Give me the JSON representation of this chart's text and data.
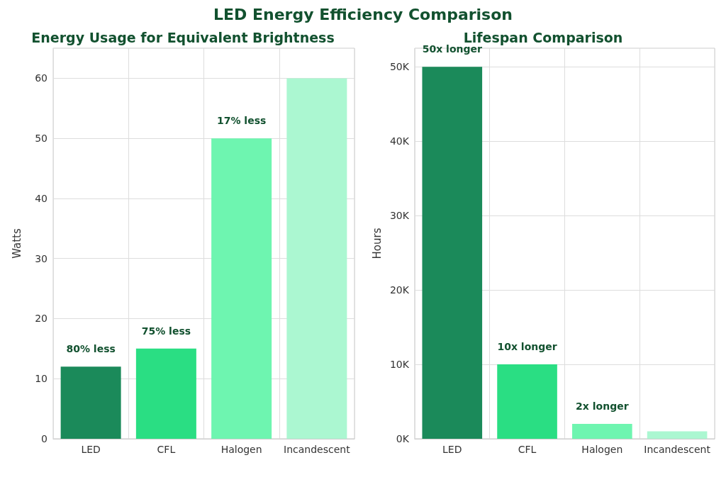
{
  "chart_data": [
    {
      "type": "bar",
      "title": "Energy Usage for Equivalent Brightness",
      "ylabel": "Watts",
      "categories": [
        "LED",
        "CFL",
        "Halogen",
        "Incandescent"
      ],
      "values": [
        12,
        15,
        50,
        60
      ],
      "colors": [
        "#1b8a5a",
        "#2ade83",
        "#6ef5b0",
        "#abf7d1"
      ],
      "ylim": [
        0,
        65
      ],
      "yticks": [
        0,
        10,
        20,
        30,
        40,
        50,
        60
      ],
      "grid": true,
      "annotations": [
        "LED Energy Efficiency Comparison",
        {
          "text": "80% less",
          "x": "LED",
          "y": 12
        },
        {
          "text": "75% less",
          "x": "CFL",
          "y": 15
        },
        {
          "text": "17% less",
          "x": "Halogen",
          "y": 50
        }
      ]
    },
    {
      "type": "bar",
      "title": "Lifespan Comparison",
      "ylabel": "Hours",
      "categories": [
        "LED",
        "CFL",
        "Halogen",
        "Incandescent"
      ],
      "values": [
        50000,
        10000,
        2000,
        1000
      ],
      "colors": [
        "#1b8a5a",
        "#2ade83",
        "#6ef5b0",
        "#abf7d1"
      ],
      "ylim": [
        0,
        52500
      ],
      "yticks": [
        {
          "value": 0,
          "label": "0K"
        },
        {
          "value": 10000,
          "label": "10K"
        },
        {
          "value": 20000,
          "label": "20K"
        },
        {
          "value": 30000,
          "label": "30K"
        },
        {
          "value": 40000,
          "label": "40K"
        },
        {
          "value": 50000,
          "label": "50K"
        }
      ],
      "grid": true,
      "annotations": [
        {
          "text": "50x longer",
          "x": "LED",
          "y": 50000
        },
        {
          "text": "10x longer",
          "x": "CFL",
          "y": 10000
        },
        {
          "text": "2x longer",
          "x": "Halogen",
          "y": 2000
        }
      ]
    }
  ]
}
